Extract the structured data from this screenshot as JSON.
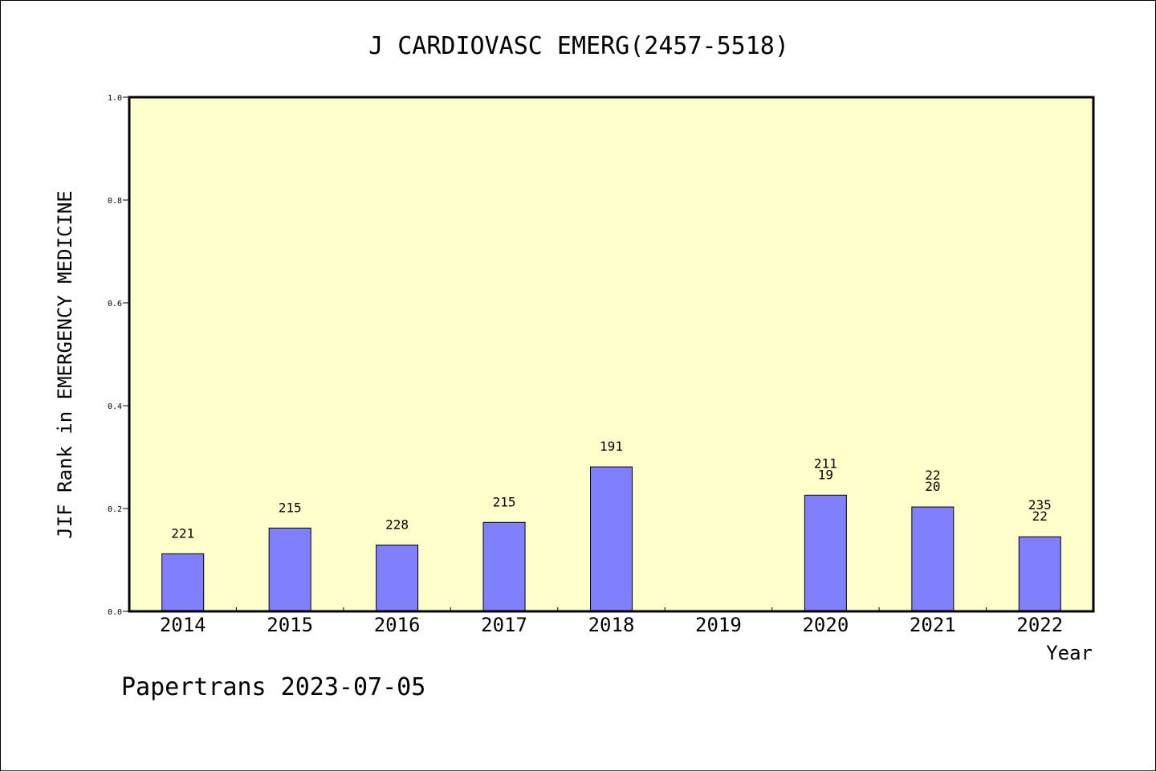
{
  "chart_data": {
    "type": "bar",
    "title": "J CARDIOVASC EMERG(2457-5518)",
    "xlabel": "Year",
    "ylabel": "JIF Rank in EMERGENCY MEDICINE",
    "ylim": [
      0,
      1
    ],
    "yticks": [
      "0.0",
      "0.2",
      "0.4",
      "0.6",
      "0.8",
      "1.0"
    ],
    "categories": [
      "2014",
      "2015",
      "2016",
      "2017",
      "2018",
      "2019",
      "2020",
      "2021",
      "2022"
    ],
    "values": [
      0.112,
      0.162,
      0.129,
      0.173,
      0.281,
      null,
      0.226,
      0.203,
      0.145
    ],
    "bar_labels": [
      [
        "221"
      ],
      [
        "215"
      ],
      [
        "228"
      ],
      [
        "215"
      ],
      [
        "191"
      ],
      [],
      [
        "211",
        "19"
      ],
      [
        "22",
        "20"
      ],
      [
        "235",
        "22"
      ]
    ],
    "grid": false,
    "footer": "Papertrans 2023-07-05",
    "colors": {
      "plot_bg": "#ffffcc",
      "bar": "#8080ff",
      "axis": "#000000"
    }
  }
}
